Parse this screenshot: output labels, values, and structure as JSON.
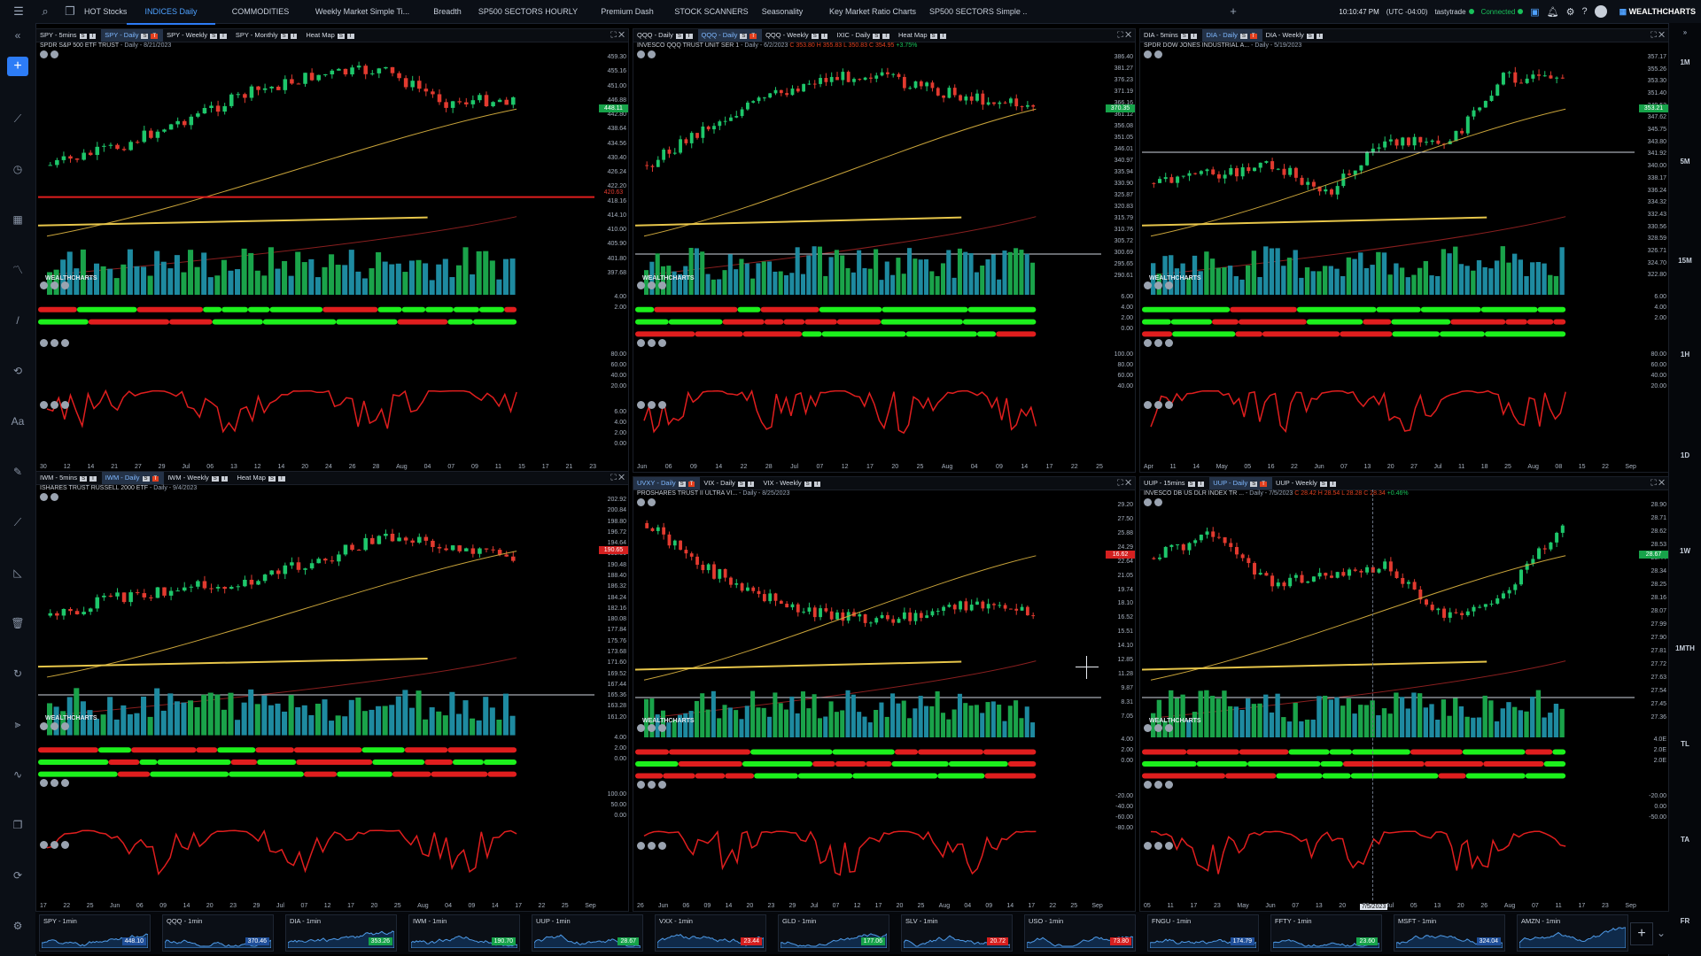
{
  "app": {
    "brand": "WEALTHCHARTS",
    "time": "10:10:47 PM",
    "timezone": "(UTC -04:00)",
    "broker": "tastytrade",
    "connection": "Connected"
  },
  "tabs": [
    {
      "label": "HOT Stocks",
      "active": false
    },
    {
      "label": "INDICES Daily",
      "active": true
    },
    {
      "label": "COMMODITIES",
      "active": false
    },
    {
      "label": "Weekly Market Simple Ti...",
      "active": false
    },
    {
      "label": "Breadth",
      "active": false
    },
    {
      "label": "SP500 SECTORS HOURLY",
      "active": false
    },
    {
      "label": "Premium Dash",
      "active": false
    },
    {
      "label": "STOCK SCANNERS",
      "active": false
    },
    {
      "label": "Seasonality",
      "active": false
    },
    {
      "label": "Key Market Ratio Charts",
      "active": false
    },
    {
      "label": "SP500 SECTORS Simple ...",
      "active": false
    }
  ],
  "right_timeframes": [
    "1M",
    "5M",
    "15M",
    "1H",
    "1D",
    "1W",
    "1MTH",
    "TL",
    "TA",
    "FR"
  ],
  "panels": [
    {
      "id": "spy",
      "tabs": [
        "SPY - 5mins",
        "SPY - Daily",
        "SPY - Weekly",
        "SPY - Monthly",
        "Heat Map"
      ],
      "selected_tab": 1,
      "title": "SPDR S&P 500 ETF TRUST",
      "meta": "- Daily - 8/21/2023",
      "price_axis": [
        "459.30",
        "455.16",
        "451.00",
        "446.88",
        "442.80",
        "438.64",
        "434.56",
        "430.40",
        "426.24",
        "422.20",
        "418.16",
        "414.10",
        "410.00",
        "405.90",
        "401.80",
        "397.68"
      ],
      "price_tag": "448.11",
      "red_level_tag": "420.63",
      "sub_axis1": [
        "4.00",
        "2.00"
      ],
      "sub_axis2": [
        "80.00",
        "60.00",
        "40.00",
        "20.00"
      ],
      "sub_axis3": [
        "6.00",
        "4.00",
        "2.00",
        "0.00"
      ],
      "xaxis": [
        "30",
        "12",
        "14",
        "21",
        "27",
        "29",
        "Jul",
        "06",
        "13",
        "12",
        "14",
        "20",
        "24",
        "26",
        "28",
        "Aug",
        "04",
        "07",
        "09",
        "11",
        "15",
        "17",
        "21",
        "23"
      ],
      "watermark": "WEALTHCHARTS"
    },
    {
      "id": "qqq",
      "tabs": [
        "QQQ - Daily",
        "QQQ - Daily",
        "QQQ - Weekly",
        "IXIC - Daily",
        "Heat Map"
      ],
      "selected_tab": 1,
      "title": "INVESCO QQQ TRUST UNIT SER 1",
      "meta": "- Daily - 6/2/2023",
      "ohlc": "C 353.80 H 355.83 L 350.83 C 354.95",
      "change": "+3.75%",
      "price_axis": [
        "386.40",
        "381.27",
        "376.23",
        "371.19",
        "366.16",
        "361.12",
        "356.08",
        "351.05",
        "346.01",
        "340.97",
        "335.94",
        "330.90",
        "325.87",
        "320.83",
        "315.79",
        "310.76",
        "305.72",
        "300.69",
        "295.65",
        "290.61"
      ],
      "price_tag": "370.35",
      "sub_axis1": [
        "6.00",
        "4.00",
        "2.00",
        "0.00"
      ],
      "sub_axis2": [
        "100.00",
        "80.00",
        "60.00",
        "40.00"
      ],
      "xaxis": [
        "Jun",
        "06",
        "09",
        "14",
        "22",
        "28",
        "Jul",
        "07",
        "12",
        "17",
        "20",
        "25",
        "Aug",
        "04",
        "09",
        "14",
        "17",
        "22",
        "25"
      ],
      "watermark": "WEALTHCHARTS"
    },
    {
      "id": "dia",
      "tabs": [
        "DIA - 5mins",
        "DIA - Daily",
        "DIA - Weekly"
      ],
      "selected_tab": 1,
      "title": "SPDR DOW JONES INDUSTRIAL A...",
      "meta": "- Daily - 5/19/2023",
      "price_axis": [
        "357.17",
        "355.26",
        "353.30",
        "351.40",
        "349.53",
        "347.62",
        "345.75",
        "343.80",
        "341.92",
        "340.00",
        "338.17",
        "336.24",
        "334.32",
        "332.43",
        "330.56",
        "328.59",
        "326.71",
        "324.70",
        "322.80"
      ],
      "price_tag": "353.21",
      "sub_axis1": [
        "6.00",
        "4.00",
        "2.00"
      ],
      "sub_axis2": [
        "80.00",
        "60.00",
        "40.00",
        "20.00"
      ],
      "xaxis": [
        "Apr",
        "11",
        "14",
        "May",
        "05",
        "16",
        "22",
        "Jun",
        "07",
        "13",
        "20",
        "27",
        "Jul",
        "11",
        "18",
        "25",
        "Aug",
        "08",
        "15",
        "22",
        "Sep"
      ],
      "watermark": "WEALTHCHARTS"
    },
    {
      "id": "iwm",
      "tabs": [
        "IWM - 5mins",
        "IWM - Daily",
        "IWM - Weekly",
        "Heat Map"
      ],
      "selected_tab": 1,
      "title": "ISHARES TRUST RUSSELL 2000 ETF",
      "meta": "- Daily - 9/4/2023",
      "price_axis": [
        "202.92",
        "200.84",
        "198.80",
        "196.72",
        "194.64",
        "192.56",
        "190.48",
        "188.40",
        "186.32",
        "184.24",
        "182.16",
        "180.08",
        "177.84",
        "175.76",
        "173.68",
        "171.60",
        "169.52",
        "167.44",
        "165.36",
        "163.28",
        "161.20"
      ],
      "price_tag": "190.65",
      "sub_axis1": [
        "4.00",
        "2.00",
        "0.00"
      ],
      "sub_axis2": [
        "100.00",
        "50.00",
        "0.00"
      ],
      "xaxis": [
        "17",
        "22",
        "25",
        "Jun",
        "06",
        "09",
        "14",
        "20",
        "23",
        "29",
        "Jul",
        "07",
        "12",
        "17",
        "20",
        "25",
        "Aug",
        "04",
        "09",
        "14",
        "17",
        "22",
        "25",
        "Sep"
      ],
      "watermark": "WEALTHCHARTS"
    },
    {
      "id": "uvxy",
      "tabs": [
        "UVXY - Daily",
        "VIX - Daily",
        "VIX - Weekly"
      ],
      "selected_tab": 0,
      "title": "PROSHARES TRUST II ULTRA VI...",
      "meta": "- Daily - 8/25/2023",
      "price_axis": [
        "29.20",
        "27.50",
        "25.88",
        "24.29",
        "22.64",
        "21.05",
        "19.74",
        "18.10",
        "16.52",
        "15.51",
        "14.10",
        "12.85",
        "11.28",
        "9.87",
        "8.31",
        "7.05"
      ],
      "price_tag": "16.62",
      "sub_axis1": [
        "4.00",
        "2.00",
        "0.00"
      ],
      "sub_axis2": [
        "-20.00",
        "-40.00",
        "-60.00",
        "-80.00"
      ],
      "xaxis": [
        "26",
        "Jun",
        "06",
        "09",
        "14",
        "20",
        "23",
        "29",
        "Jul",
        "07",
        "12",
        "17",
        "20",
        "25",
        "Aug",
        "04",
        "09",
        "14",
        "17",
        "22",
        "25",
        "Sep"
      ],
      "watermark": "WEALTHCHARTS"
    },
    {
      "id": "uup",
      "tabs": [
        "UUP - 15mins",
        "UUP - Daily",
        "UUP - Weekly"
      ],
      "selected_tab": 1,
      "title": "INVESCO DB US DLR INDEX TR ...",
      "meta": "- Daily - 7/5/2023",
      "ohlc": "C 28.42 H 28.54 L 28.28 C 28.34",
      "change": "+0.46%",
      "price_axis": [
        "28.90",
        "28.71",
        "28.62",
        "28.53",
        "28.44",
        "28.34",
        "28.25",
        "28.16",
        "28.07",
        "27.99",
        "27.90",
        "27.81",
        "27.72",
        "27.63",
        "27.54",
        "27.45",
        "27.36"
      ],
      "price_tag": "28.67",
      "sub_axis1": [
        "4.0E",
        "2.0E",
        "2.0E"
      ],
      "sub_axis2": [
        "-20.00",
        "0.00",
        "-50.00"
      ],
      "xaxis": [
        "05",
        "11",
        "17",
        "23",
        "May",
        "Jun",
        "07",
        "13",
        "20",
        "26",
        "Jul",
        "05",
        "13",
        "20",
        "26",
        "Aug",
        "07",
        "11",
        "17",
        "23",
        "Sep"
      ],
      "crosshair_date": "7/5/2023",
      "watermark": "WEALTHCHARTS"
    }
  ],
  "watchlist": [
    {
      "symbol": "SPY - 1min",
      "value": "448.10",
      "color": "#1f4f9a"
    },
    {
      "symbol": "QQQ - 1min",
      "value": "370.46",
      "color": "#1f4f9a"
    },
    {
      "symbol": "DIA - 1min",
      "value": "353.26",
      "color": "#16a34a"
    },
    {
      "symbol": "IWM - 1min",
      "value": "190.70",
      "color": "#16a34a"
    },
    {
      "symbol": "UUP - 1min",
      "value": "28.67",
      "color": "#16a34a"
    },
    {
      "symbol": "VXX - 1min",
      "value": "23.44",
      "color": "#d61f1f"
    },
    {
      "symbol": "GLD - 1min",
      "value": "177.06",
      "color": "#16a34a"
    },
    {
      "symbol": "SLV - 1min",
      "value": "20.72",
      "color": "#d61f1f"
    },
    {
      "symbol": "USO - 1min",
      "value": "73.80",
      "color": "#d61f1f"
    },
    {
      "symbol": "FNGU - 1min",
      "value": "174.79",
      "color": "#1f4f9a"
    },
    {
      "symbol": "FFTY - 1min",
      "value": "23.60",
      "color": "#16a34a"
    },
    {
      "symbol": "MSFT - 1min",
      "value": "324.04",
      "color": "#1f4f9a"
    },
    {
      "symbol": "AMZN - 1min",
      "value": "",
      "color": "#1f4f9a"
    }
  ]
}
